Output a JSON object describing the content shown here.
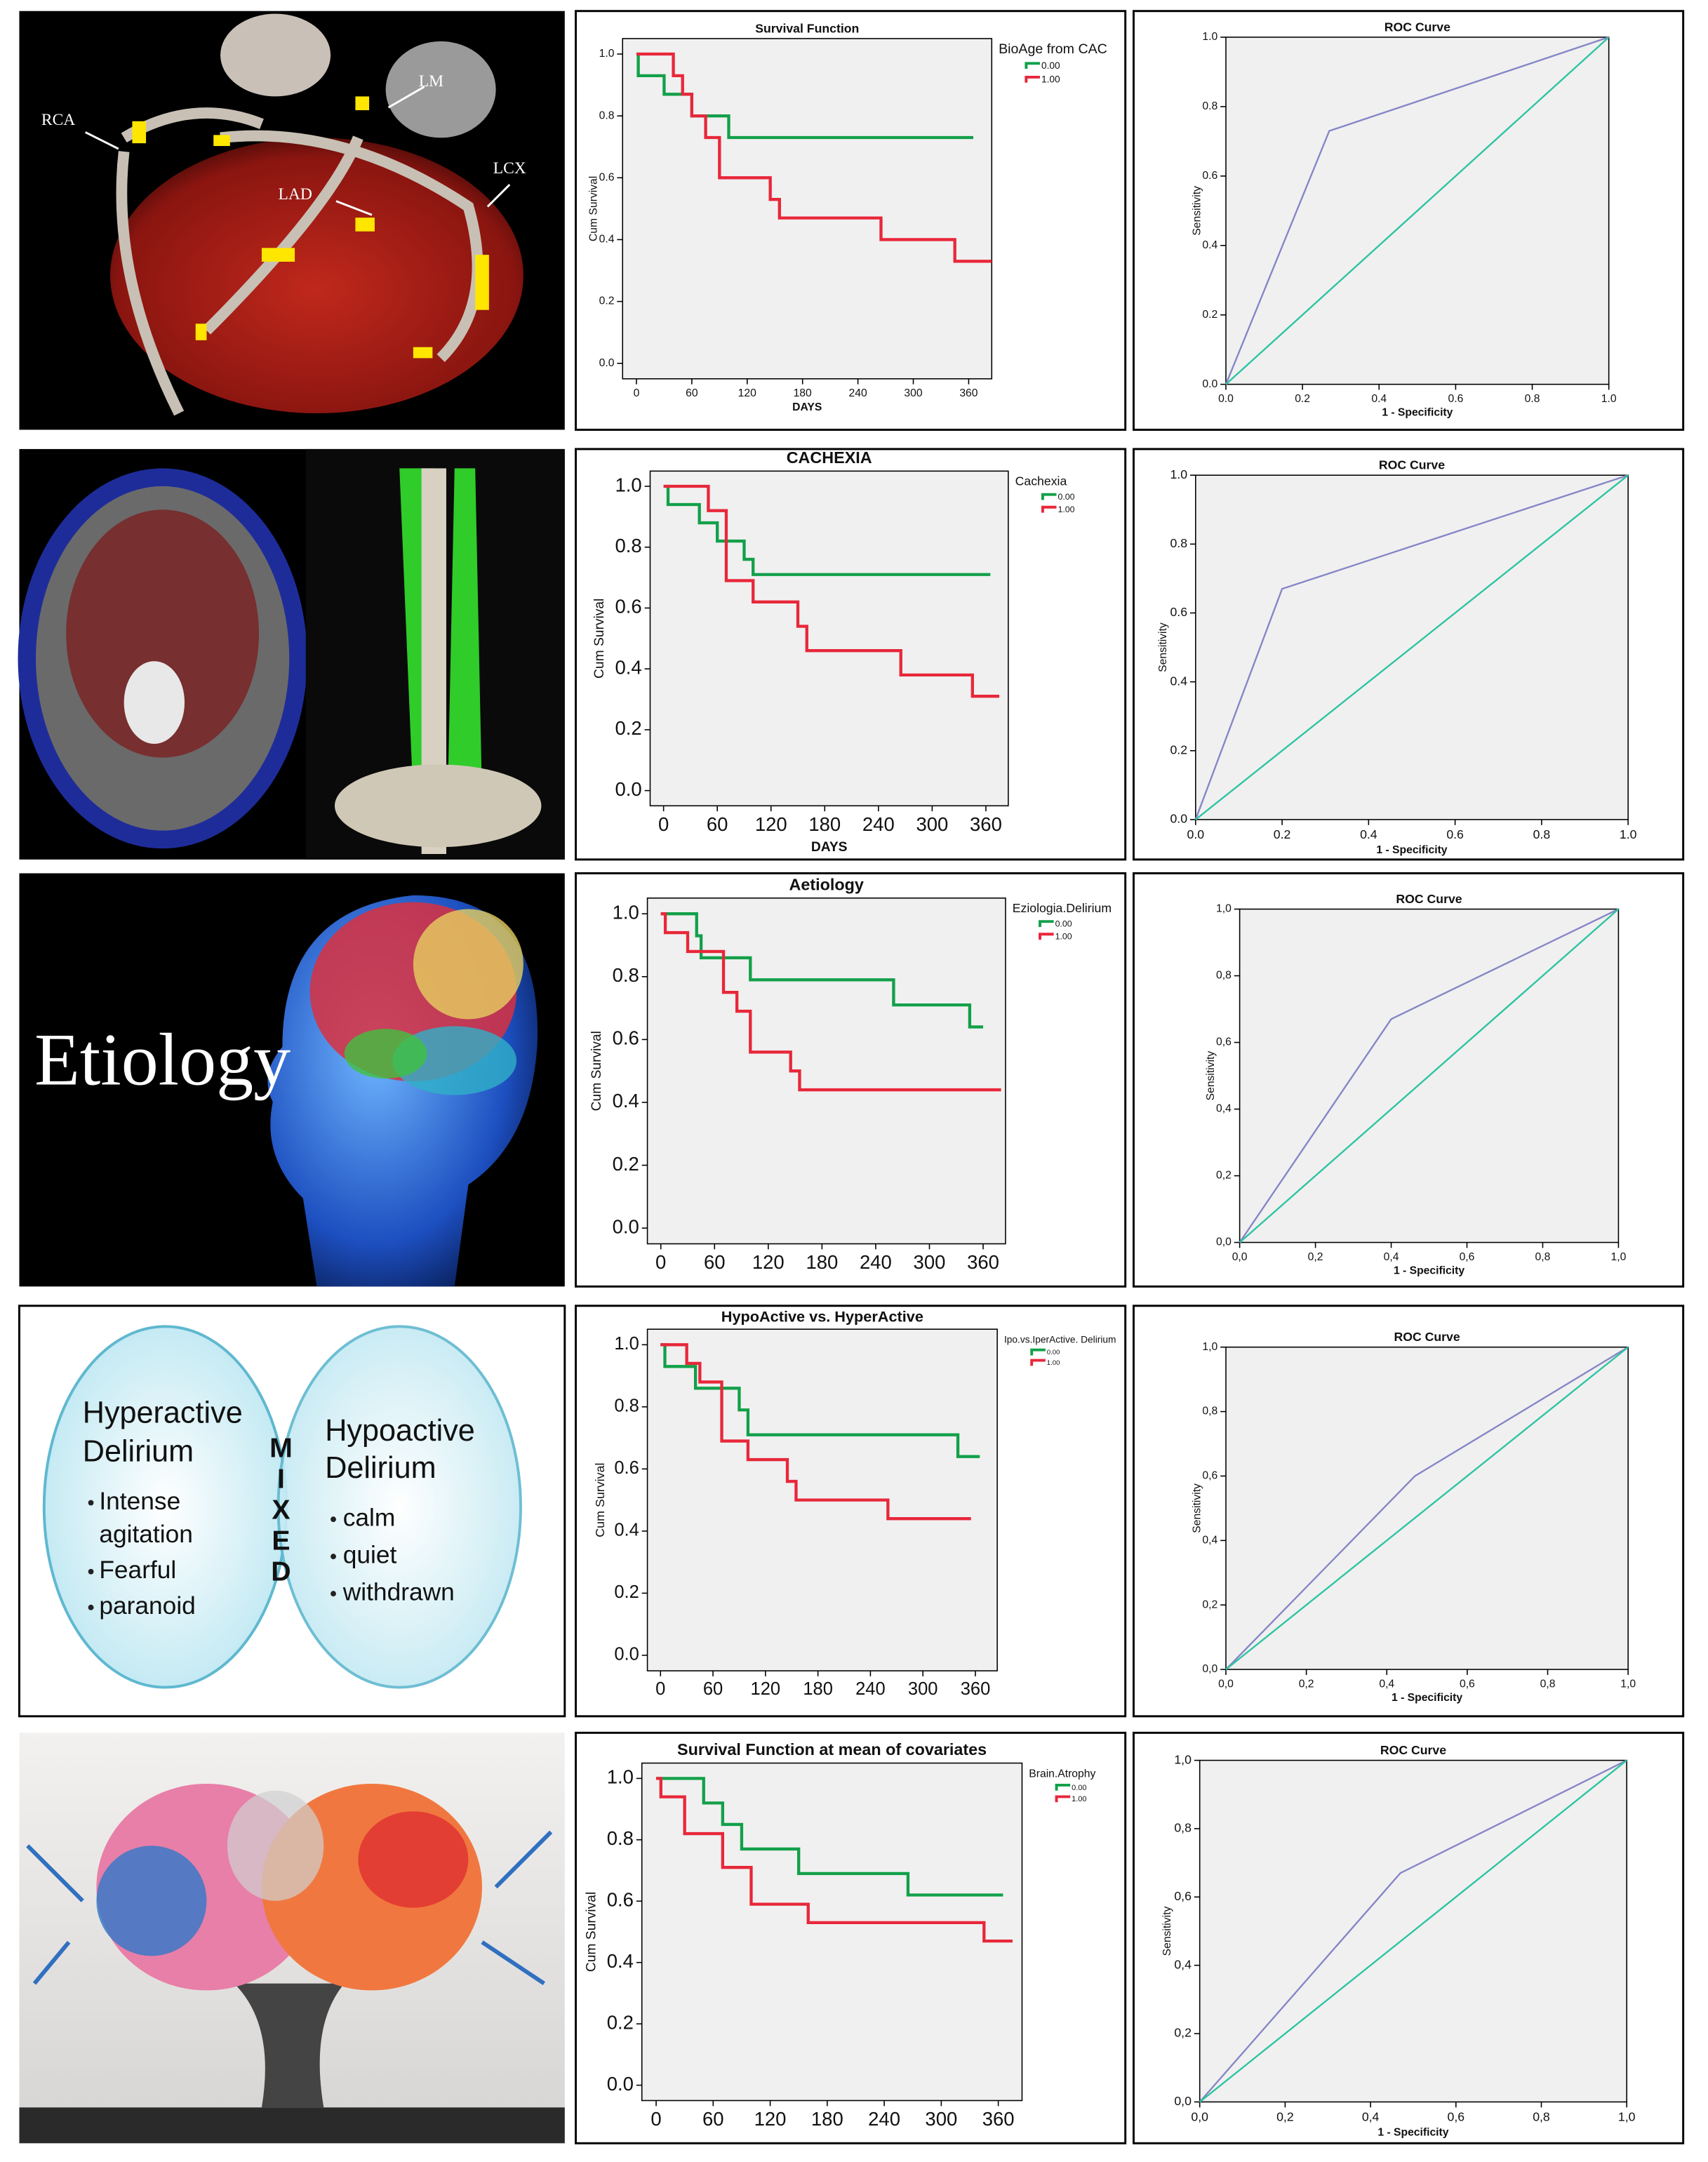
{
  "panels": {
    "heart": {
      "labels": [
        "RCA",
        "LM",
        "LAD",
        "LCX"
      ]
    },
    "etiology": {
      "title": "Etiology"
    },
    "delirium": {
      "left": {
        "title": [
          "Hyperactive",
          "Delirium"
        ],
        "items": [
          "Intense",
          "agitation",
          "Fearful",
          "paranoid"
        ]
      },
      "middle": "MIXED",
      "right": {
        "title": [
          "Hypoactive",
          "Delirium"
        ],
        "items": [
          "calm",
          "quiet",
          "withdrawn"
        ]
      }
    }
  },
  "chart_data": [
    {
      "type": "line",
      "step": true,
      "title": "Survival Function",
      "xlabel": "DAYS",
      "ylabel": "Cum Survival",
      "legend_title": "BioAge from CAC",
      "legend": "right",
      "xlim": [
        -15,
        385
      ],
      "ylim": [
        -0.05,
        1.05
      ],
      "xticks": [
        0,
        60,
        120,
        180,
        240,
        300,
        360
      ],
      "yticks": [
        {
          "value": 0,
          "label": "0.0"
        },
        {
          "value": 0.2,
          "label": "0.2"
        },
        {
          "value": 0.4,
          "label": "0.4"
        },
        {
          "value": 0.6,
          "label": "0.6"
        },
        {
          "value": 0.8,
          "label": "0.8"
        },
        {
          "value": 1,
          "label": "1.0"
        }
      ],
      "series": [
        {
          "name": "0.00",
          "color": "#12a04a",
          "x": [
            0,
            2,
            30,
            60,
            100,
            365
          ],
          "values": [
            1,
            0.93,
            0.87,
            0.8,
            0.73,
            0.73
          ]
        },
        {
          "name": "1.00",
          "color": "#e8273a",
          "x": [
            0,
            40,
            50,
            60,
            75,
            90,
            145,
            155,
            265,
            345,
            385
          ],
          "values": [
            1,
            0.93,
            0.87,
            0.8,
            0.73,
            0.6,
            0.53,
            0.47,
            0.4,
            0.33,
            0.33
          ]
        }
      ]
    },
    {
      "type": "line",
      "title": "ROC Curve",
      "xlabel": "1 - Specificity",
      "ylabel": "Sensitivity",
      "xlim": [
        0,
        1
      ],
      "ylim": [
        0,
        1
      ],
      "xticks": [
        {
          "value": 0,
          "label": "0.0"
        },
        {
          "value": 0.2,
          "label": "0.2"
        },
        {
          "value": 0.4,
          "label": "0.4"
        },
        {
          "value": 0.6,
          "label": "0.6"
        },
        {
          "value": 0.8,
          "label": "0.8"
        },
        {
          "value": 1,
          "label": "1.0"
        }
      ],
      "yticks": [
        {
          "value": 0,
          "label": "0.0"
        },
        {
          "value": 0.2,
          "label": "0.2"
        },
        {
          "value": 0.4,
          "label": "0.4"
        },
        {
          "value": 0.6,
          "label": "0.6"
        },
        {
          "value": 0.8,
          "label": "0.8"
        },
        {
          "value": 1,
          "label": "1.0"
        }
      ],
      "series": [
        {
          "color": "#8585c8",
          "x": [
            0,
            0.27,
            1
          ],
          "values": [
            0,
            0.73,
            1
          ]
        },
        {
          "color": "#2cc4a0",
          "x": [
            0,
            1
          ],
          "values": [
            0,
            1
          ]
        }
      ]
    },
    {
      "type": "line",
      "step": true,
      "title": "CACHEXIA",
      "xlabel": "DAYS",
      "ylabel": "Cum Survival",
      "legend_title": "Cachexia",
      "legend": "right",
      "xlim": [
        -15,
        385
      ],
      "ylim": [
        -0.05,
        1.05
      ],
      "xticks": [
        0,
        60,
        120,
        180,
        240,
        300,
        360
      ],
      "yticks": [
        {
          "value": 0,
          "label": "0.0"
        },
        {
          "value": 0.2,
          "label": "0.2"
        },
        {
          "value": 0.4,
          "label": "0.4"
        },
        {
          "value": 0.6,
          "label": "0.6"
        },
        {
          "value": 0.8,
          "label": "0.8"
        },
        {
          "value": 1,
          "label": "1.0"
        }
      ],
      "series": [
        {
          "name": "0.00",
          "color": "#12a04a",
          "x": [
            0,
            5,
            40,
            60,
            90,
            100,
            365
          ],
          "values": [
            1,
            0.94,
            0.88,
            0.82,
            0.76,
            0.71,
            0.71
          ]
        },
        {
          "name": "1.00",
          "color": "#e8273a",
          "x": [
            0,
            50,
            70,
            100,
            150,
            160,
            265,
            345,
            375
          ],
          "values": [
            1,
            0.92,
            0.69,
            0.62,
            0.54,
            0.46,
            0.38,
            0.31,
            0.31
          ]
        }
      ]
    },
    {
      "type": "line",
      "title": "ROC Curve",
      "xlabel": "1 - Specificity",
      "ylabel": "Sensitivity",
      "xlim": [
        0,
        1
      ],
      "ylim": [
        0,
        1
      ],
      "xticks": [
        {
          "value": 0,
          "label": "0.0"
        },
        {
          "value": 0.2,
          "label": "0.2"
        },
        {
          "value": 0.4,
          "label": "0.4"
        },
        {
          "value": 0.6,
          "label": "0.6"
        },
        {
          "value": 0.8,
          "label": "0.8"
        },
        {
          "value": 1,
          "label": "1.0"
        }
      ],
      "yticks": [
        {
          "value": 0,
          "label": "0.0"
        },
        {
          "value": 0.2,
          "label": "0.2"
        },
        {
          "value": 0.4,
          "label": "0.4"
        },
        {
          "value": 0.6,
          "label": "0.6"
        },
        {
          "value": 0.8,
          "label": "0.8"
        },
        {
          "value": 1,
          "label": "1.0"
        }
      ],
      "series": [
        {
          "color": "#8585c8",
          "x": [
            0,
            0.2,
            1
          ],
          "values": [
            0,
            0.67,
            1
          ]
        },
        {
          "color": "#2cc4a0",
          "x": [
            0,
            1
          ],
          "values": [
            0,
            1
          ]
        }
      ]
    },
    {
      "type": "line",
      "step": true,
      "title": "Aetiology",
      "ylabel": "Cum Survival",
      "legend_title": "Eziologia.Delirium",
      "legend": "right",
      "xlim": [
        -15,
        385
      ],
      "ylim": [
        -0.05,
        1.05
      ],
      "xticks": [
        0,
        60,
        120,
        180,
        240,
        300,
        360
      ],
      "yticks": [
        {
          "value": 0,
          "label": "0.0"
        },
        {
          "value": 0.2,
          "label": "0.2"
        },
        {
          "value": 0.4,
          "label": "0.4"
        },
        {
          "value": 0.6,
          "label": "0.6"
        },
        {
          "value": 0.8,
          "label": "0.8"
        },
        {
          "value": 1,
          "label": "1.0"
        }
      ],
      "series": [
        {
          "name": "0.00",
          "color": "#12a04a",
          "x": [
            0,
            40,
            45,
            100,
            260,
            345,
            360
          ],
          "values": [
            1,
            0.93,
            0.86,
            0.79,
            0.71,
            0.64,
            0.64
          ]
        },
        {
          "name": "1.00",
          "color": "#e8273a",
          "x": [
            0,
            5,
            30,
            70,
            85,
            100,
            145,
            155,
            380
          ],
          "values": [
            1,
            0.94,
            0.88,
            0.75,
            0.69,
            0.56,
            0.5,
            0.44,
            0.44
          ]
        }
      ]
    },
    {
      "type": "line",
      "title": "ROC Curve",
      "xlabel": "1 - Specificity",
      "ylabel": "Sensitivity",
      "xlim": [
        0,
        1
      ],
      "ylim": [
        0,
        1
      ],
      "xticks": [
        {
          "value": 0,
          "label": "0,0"
        },
        {
          "value": 0.2,
          "label": "0,2"
        },
        {
          "value": 0.4,
          "label": "0,4"
        },
        {
          "value": 0.6,
          "label": "0,6"
        },
        {
          "value": 0.8,
          "label": "0,8"
        },
        {
          "value": 1,
          "label": "1,0"
        }
      ],
      "yticks": [
        {
          "value": 0,
          "label": "0,0"
        },
        {
          "value": 0.2,
          "label": "0,2"
        },
        {
          "value": 0.4,
          "label": "0,4"
        },
        {
          "value": 0.6,
          "label": "0,6"
        },
        {
          "value": 0.8,
          "label": "0,8"
        },
        {
          "value": 1,
          "label": "1,0"
        }
      ],
      "series": [
        {
          "color": "#8585c8",
          "x": [
            0,
            0.4,
            1
          ],
          "values": [
            0,
            0.67,
            1
          ]
        },
        {
          "color": "#2cc4a0",
          "x": [
            0,
            1
          ],
          "values": [
            0,
            1
          ]
        }
      ]
    },
    {
      "type": "line",
      "step": true,
      "title": "HypoActive vs. HyperActive",
      "ylabel": "Cum Survival",
      "legend_title": "Ipo.vs.IperActive. Delirium",
      "legend": "right",
      "xlim": [
        -15,
        385
      ],
      "ylim": [
        -0.05,
        1.05
      ],
      "xticks": [
        0,
        60,
        120,
        180,
        240,
        300,
        360
      ],
      "yticks": [
        {
          "value": 0,
          "label": "0.0"
        },
        {
          "value": 0.2,
          "label": "0.2"
        },
        {
          "value": 0.4,
          "label": "0.4"
        },
        {
          "value": 0.6,
          "label": "0.6"
        },
        {
          "value": 0.8,
          "label": "0.8"
        },
        {
          "value": 1,
          "label": "1.0"
        }
      ],
      "series": [
        {
          "name": "0.00",
          "color": "#12a04a",
          "x": [
            0,
            5,
            40,
            90,
            100,
            340,
            365
          ],
          "values": [
            1,
            0.93,
            0.86,
            0.79,
            0.71,
            0.64,
            0.64
          ]
        },
        {
          "name": "1.00",
          "color": "#e8273a",
          "x": [
            0,
            30,
            45,
            70,
            100,
            145,
            155,
            260,
            355
          ],
          "values": [
            1,
            0.94,
            0.88,
            0.69,
            0.63,
            0.56,
            0.5,
            0.44,
            0.44
          ]
        }
      ]
    },
    {
      "type": "line",
      "title": "ROC Curve",
      "xlabel": "1 - Specificity",
      "ylabel": "Sensitivity",
      "xlim": [
        0,
        1
      ],
      "ylim": [
        0,
        1
      ],
      "xticks": [
        {
          "value": 0,
          "label": "0,0"
        },
        {
          "value": 0.2,
          "label": "0,2"
        },
        {
          "value": 0.4,
          "label": "0,4"
        },
        {
          "value": 0.6,
          "label": "0,6"
        },
        {
          "value": 0.8,
          "label": "0,8"
        },
        {
          "value": 1,
          "label": "1,0"
        }
      ],
      "yticks": [
        {
          "value": 0,
          "label": "0,0"
        },
        {
          "value": 0.2,
          "label": "0,2"
        },
        {
          "value": 0.4,
          "label": "0,4"
        },
        {
          "value": 0.6,
          "label": "0,6"
        },
        {
          "value": 0.8,
          "label": "0,8"
        },
        {
          "value": 1,
          "label": "1,0"
        }
      ],
      "series": [
        {
          "color": "#8585c8",
          "x": [
            0,
            0.47,
            1
          ],
          "values": [
            0,
            0.6,
            1
          ]
        },
        {
          "color": "#2cc4a0",
          "x": [
            0,
            1
          ],
          "values": [
            0,
            1
          ]
        }
      ]
    },
    {
      "type": "line",
      "step": true,
      "title": "Survival Function at mean of covariates",
      "ylabel": "Cum Survival",
      "legend_title": "Brain.Atrophy",
      "legend": "right",
      "xlim": [
        -15,
        385
      ],
      "ylim": [
        -0.05,
        1.05
      ],
      "xticks": [
        0,
        60,
        120,
        180,
        240,
        300,
        360
      ],
      "yticks": [
        {
          "value": 0,
          "label": "0.0"
        },
        {
          "value": 0.2,
          "label": "0.2"
        },
        {
          "value": 0.4,
          "label": "0.4"
        },
        {
          "value": 0.6,
          "label": "0.6"
        },
        {
          "value": 0.8,
          "label": "0.8"
        },
        {
          "value": 1,
          "label": "1.0"
        }
      ],
      "series": [
        {
          "name": "0.00",
          "color": "#12a04a",
          "x": [
            0,
            50,
            70,
            90,
            150,
            265,
            365
          ],
          "values": [
            1,
            0.92,
            0.85,
            0.77,
            0.69,
            0.62,
            0.62
          ]
        },
        {
          "name": "1.00",
          "color": "#e8273a",
          "x": [
            0,
            5,
            30,
            70,
            100,
            160,
            345,
            375
          ],
          "values": [
            1,
            0.94,
            0.82,
            0.71,
            0.59,
            0.53,
            0.47,
            0.47
          ]
        }
      ]
    },
    {
      "type": "line",
      "title": "ROC Curve",
      "xlabel": "1 - Specificity",
      "ylabel": "Sensitivity",
      "xlim": [
        0,
        1
      ],
      "ylim": [
        0,
        1
      ],
      "xticks": [
        {
          "value": 0,
          "label": "0,0"
        },
        {
          "value": 0.2,
          "label": "0,2"
        },
        {
          "value": 0.4,
          "label": "0,4"
        },
        {
          "value": 0.6,
          "label": "0,6"
        },
        {
          "value": 0.8,
          "label": "0,8"
        },
        {
          "value": 1,
          "label": "1,0"
        }
      ],
      "yticks": [
        {
          "value": 0,
          "label": "0,0"
        },
        {
          "value": 0.2,
          "label": "0,2"
        },
        {
          "value": 0.4,
          "label": "0,4"
        },
        {
          "value": 0.6,
          "label": "0,6"
        },
        {
          "value": 0.8,
          "label": "0,8"
        },
        {
          "value": 1,
          "label": "1,0"
        }
      ],
      "series": [
        {
          "color": "#8585c8",
          "x": [
            0,
            0.47,
            1
          ],
          "values": [
            0,
            0.67,
            1
          ]
        },
        {
          "color": "#2cc4a0",
          "x": [
            0,
            1
          ],
          "values": [
            0,
            1
          ]
        }
      ]
    }
  ]
}
